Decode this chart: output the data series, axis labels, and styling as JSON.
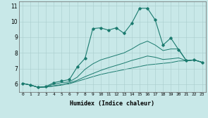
{
  "xlabel": "Humidex (Indice chaleur)",
  "bg_color": "#c8e8e8",
  "line_color": "#1a7a6e",
  "xlim": [
    -0.5,
    23.5
  ],
  "ylim": [
    5.5,
    11.3
  ],
  "xticks": [
    0,
    1,
    2,
    3,
    4,
    5,
    6,
    7,
    8,
    9,
    10,
    11,
    12,
    13,
    14,
    15,
    16,
    17,
    18,
    19,
    20,
    21,
    22,
    23
  ],
  "yticks": [
    6,
    7,
    8,
    9,
    10,
    11
  ],
  "line1_x": [
    0,
    1,
    2,
    3,
    4,
    5,
    6,
    7,
    8,
    9,
    10,
    11,
    12,
    13,
    14,
    15,
    16,
    17,
    18,
    19,
    20,
    21,
    22,
    23
  ],
  "line1_y": [
    6.05,
    5.95,
    5.8,
    5.85,
    6.1,
    6.2,
    6.3,
    7.1,
    7.65,
    9.55,
    9.6,
    9.45,
    9.6,
    9.25,
    9.9,
    10.85,
    10.85,
    10.1,
    8.5,
    8.95,
    8.2,
    7.5,
    7.55,
    7.4
  ],
  "line2_x": [
    0,
    1,
    2,
    3,
    4,
    5,
    6,
    7,
    8,
    9,
    10,
    11,
    12,
    13,
    14,
    15,
    16,
    17,
    18,
    19,
    20,
    21,
    22,
    23
  ],
  "line2_y": [
    6.05,
    5.95,
    5.8,
    5.85,
    6.0,
    6.1,
    6.15,
    6.45,
    6.95,
    7.3,
    7.55,
    7.7,
    7.85,
    8.0,
    8.25,
    8.55,
    8.75,
    8.5,
    8.15,
    8.25,
    8.25,
    7.5,
    7.55,
    7.4
  ],
  "line3_x": [
    0,
    1,
    2,
    3,
    4,
    5,
    6,
    7,
    8,
    9,
    10,
    11,
    12,
    13,
    14,
    15,
    16,
    17,
    18,
    19,
    20,
    21,
    22,
    23
  ],
  "line3_y": [
    6.05,
    5.95,
    5.8,
    5.82,
    5.9,
    5.98,
    6.08,
    6.25,
    6.48,
    6.68,
    6.88,
    7.05,
    7.2,
    7.35,
    7.52,
    7.65,
    7.8,
    7.72,
    7.58,
    7.62,
    7.68,
    7.5,
    7.55,
    7.4
  ],
  "line4_x": [
    0,
    1,
    2,
    3,
    4,
    5,
    6,
    7,
    8,
    9,
    10,
    11,
    12,
    13,
    14,
    15,
    16,
    17,
    18,
    19,
    20,
    21,
    22,
    23
  ],
  "line4_y": [
    6.05,
    5.95,
    5.8,
    5.82,
    5.88,
    5.94,
    6.03,
    6.18,
    6.33,
    6.48,
    6.62,
    6.73,
    6.83,
    6.93,
    7.03,
    7.13,
    7.23,
    7.28,
    7.33,
    7.38,
    7.48,
    7.5,
    7.55,
    7.4
  ]
}
